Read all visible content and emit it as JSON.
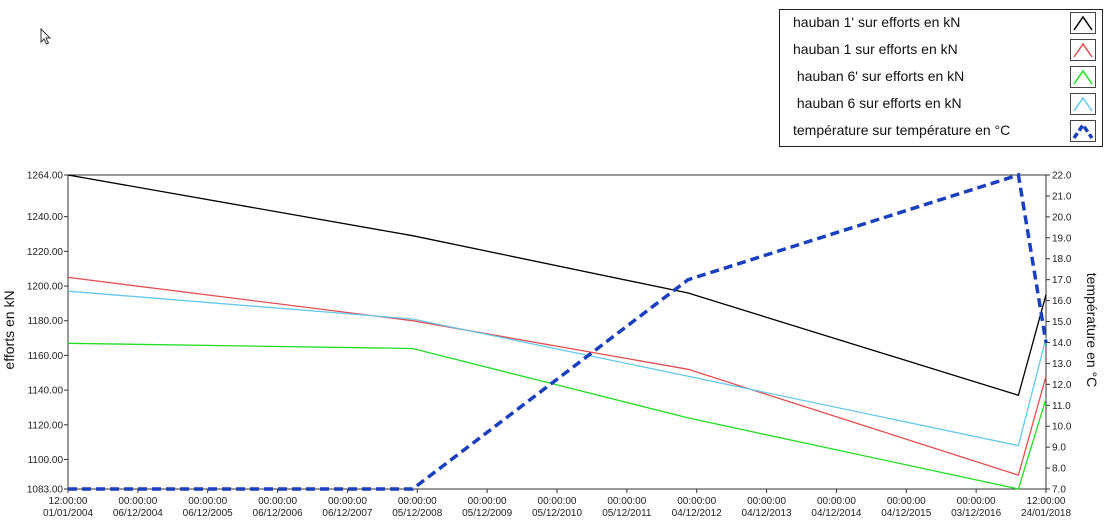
{
  "chart_data": {
    "type": "line",
    "ylabel_left": "efforts en kN",
    "ylabel_right": "température en °C",
    "x_ticks": [
      {
        "time": "12:00:00",
        "date": "01/01/2004"
      },
      {
        "time": "00:00:00",
        "date": "06/12/2004"
      },
      {
        "time": "00:00:00",
        "date": "06/12/2005"
      },
      {
        "time": "00:00:00",
        "date": "06/12/2006"
      },
      {
        "time": "00:00:00",
        "date": "06/12/2007"
      },
      {
        "time": "00:00:00",
        "date": "05/12/2008"
      },
      {
        "time": "00:00:00",
        "date": "05/12/2009"
      },
      {
        "time": "00:00:00",
        "date": "05/12/2010"
      },
      {
        "time": "00:00:00",
        "date": "05/12/2011"
      },
      {
        "time": "00:00:00",
        "date": "04/12/2012"
      },
      {
        "time": "00:00:00",
        "date": "04/12/2013"
      },
      {
        "time": "00:00:00",
        "date": "04/12/2014"
      },
      {
        "time": "00:00:00",
        "date": "04/12/2015"
      },
      {
        "time": "00:00:00",
        "date": "03/12/2016"
      },
      {
        "time": "12:00:00",
        "date": "24/01/2018"
      }
    ],
    "xlim": [
      "2004-01-01",
      "2018-01-24"
    ],
    "ylim_left": [
      1083,
      1264
    ],
    "yticks_left": [
      "1264.00",
      "1240.00",
      "1220.00",
      "1200.00",
      "1180.00",
      "1160.00",
      "1140.00",
      "1120.00",
      "1100.00",
      "1083.00"
    ],
    "ylim_right": [
      7,
      22
    ],
    "yticks_right": [
      "22.0",
      "21.0",
      "20.0",
      "19.0",
      "18.0",
      "17.0",
      "16.0",
      "15.0",
      "14.0",
      "13.0",
      "12.0",
      "11.0",
      "10.0",
      "9.0",
      "8.0",
      "7.0"
    ],
    "legend_position": "top-right",
    "series": [
      {
        "name": "hauban 1' sur efforts en kN",
        "color": "#000000",
        "axis": "left",
        "dashed": false,
        "points": [
          [
            "2004-01-01",
            1264
          ],
          [
            "2008-12-15",
            1229
          ],
          [
            "2012-12-01",
            1196
          ],
          [
            "2017-09-01",
            1137
          ],
          [
            "2018-01-24",
            1195
          ]
        ]
      },
      {
        "name": "hauban 1 sur efforts en kN",
        "color": "#e05050",
        "axis": "left",
        "dashed": false,
        "points": [
          [
            "2004-01-01",
            1205
          ],
          [
            "2008-12-15",
            1180
          ],
          [
            "2012-12-01",
            1152
          ],
          [
            "2017-09-01",
            1091
          ],
          [
            "2018-01-24",
            1148
          ]
        ]
      },
      {
        "name": " hauban 6' sur efforts en kN",
        "color": "#22dd22",
        "axis": "left",
        "dashed": false,
        "points": [
          [
            "2004-01-01",
            1167
          ],
          [
            "2008-12-15",
            1164
          ],
          [
            "2012-12-01",
            1124
          ],
          [
            "2017-09-01",
            1083
          ],
          [
            "2018-01-24",
            1135
          ]
        ]
      },
      {
        "name": " hauban 6 sur efforts en kN",
        "color": "#66c8ec",
        "axis": "left",
        "dashed": false,
        "points": [
          [
            "2004-01-01",
            1197
          ],
          [
            "2008-12-15",
            1181
          ],
          [
            "2012-12-01",
            1148
          ],
          [
            "2017-09-01",
            1108
          ],
          [
            "2018-01-24",
            1170
          ]
        ]
      },
      {
        "name": "température sur température en °C",
        "color": "#1a3fbf",
        "axis": "right",
        "dashed": true,
        "points": [
          [
            "2004-01-01",
            7.0
          ],
          [
            "2008-12-15",
            7.0
          ],
          [
            "2012-12-01",
            17.0
          ],
          [
            "2017-09-01",
            22.0
          ],
          [
            "2018-01-24",
            14.0
          ]
        ]
      }
    ]
  }
}
